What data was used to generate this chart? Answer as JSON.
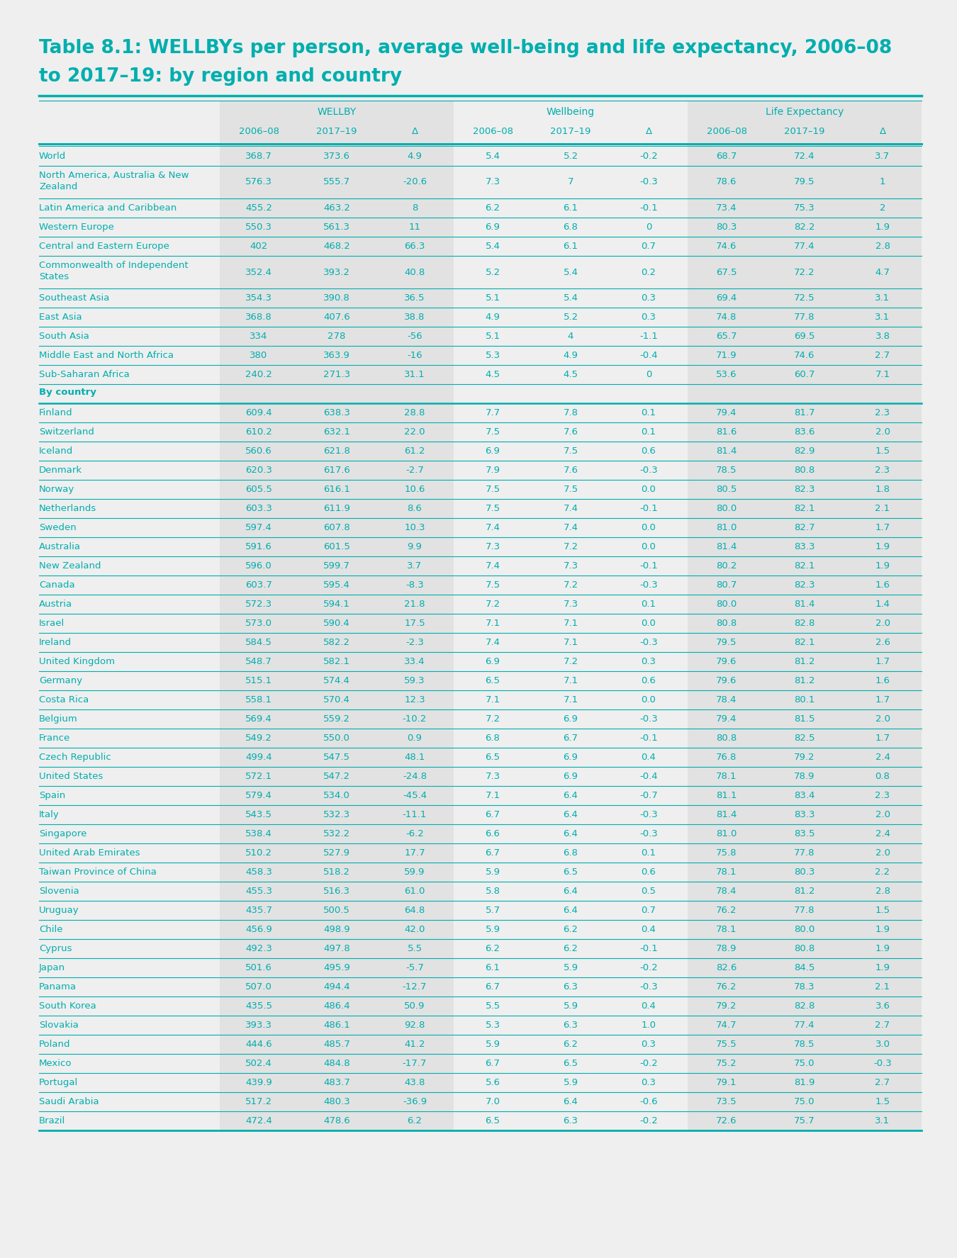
{
  "title_line1": "Table 8.1: WELLBYs per person, average well-being and life expectancy, 2006–08",
  "title_line2": "to 2017–19: by region and country",
  "teal": "#00AEAE",
  "bg_color": "#EFEFEF",
  "col_shade": "#E2E2E2",
  "header_groups": [
    "WELLBY",
    "Wellbeing",
    "Life Expectancy"
  ],
  "col_subheaders": [
    "2006–08",
    "2017–19",
    "Δ",
    "2006–08",
    "2017–19",
    "Δ",
    "2006–08",
    "2017–19",
    "Δ"
  ],
  "rows": [
    [
      "World",
      "368.7",
      "373.6",
      "4.9",
      "5.4",
      "5.2",
      "-0.2",
      "68.7",
      "72.4",
      "3.7"
    ],
    [
      "North America, Australia & New\nZealand",
      "576.3",
      "555.7",
      "-20.6",
      "7.3",
      "7",
      "-0.3",
      "78.6",
      "79.5",
      "1"
    ],
    [
      "Latin America and Caribbean",
      "455.2",
      "463.2",
      "8",
      "6.2",
      "6.1",
      "-0.1",
      "73.4",
      "75.3",
      "2"
    ],
    [
      "Western Europe",
      "550.3",
      "561.3",
      "11",
      "6.9",
      "6.8",
      "0",
      "80.3",
      "82.2",
      "1.9"
    ],
    [
      "Central and Eastern Europe",
      "402",
      "468.2",
      "66.3",
      "5.4",
      "6.1",
      "0.7",
      "74.6",
      "77.4",
      "2.8"
    ],
    [
      "Commonwealth of Independent\nStates",
      "352.4",
      "393.2",
      "40.8",
      "5.2",
      "5.4",
      "0.2",
      "67.5",
      "72.2",
      "4.7"
    ],
    [
      "Southeast Asia",
      "354.3",
      "390.8",
      "36.5",
      "5.1",
      "5.4",
      "0.3",
      "69.4",
      "72.5",
      "3.1"
    ],
    [
      "East Asia",
      "368.8",
      "407.6",
      "38.8",
      "4.9",
      "5.2",
      "0.3",
      "74.8",
      "77.8",
      "3.1"
    ],
    [
      "South Asia",
      "334",
      "278",
      "-56",
      "5.1",
      "4",
      "-1.1",
      "65.7",
      "69.5",
      "3.8"
    ],
    [
      "Middle East and North Africa",
      "380",
      "363.9",
      "-16",
      "5.3",
      "4.9",
      "-0.4",
      "71.9",
      "74.6",
      "2.7"
    ],
    [
      "Sub-Saharan Africa",
      "240.2",
      "271.3",
      "31.1",
      "4.5",
      "4.5",
      "0",
      "53.6",
      "60.7",
      "7.1"
    ],
    [
      "By country",
      null,
      null,
      null,
      null,
      null,
      null,
      null,
      null,
      null
    ],
    [
      "Finland",
      "609.4",
      "638.3",
      "28.8",
      "7.7",
      "7.8",
      "0.1",
      "79.4",
      "81.7",
      "2.3"
    ],
    [
      "Switzerland",
      "610.2",
      "632.1",
      "22.0",
      "7.5",
      "7.6",
      "0.1",
      "81.6",
      "83.6",
      "2.0"
    ],
    [
      "Iceland",
      "560.6",
      "621.8",
      "61.2",
      "6.9",
      "7.5",
      "0.6",
      "81.4",
      "82.9",
      "1.5"
    ],
    [
      "Denmark",
      "620.3",
      "617.6",
      "-2.7",
      "7.9",
      "7.6",
      "-0.3",
      "78.5",
      "80.8",
      "2.3"
    ],
    [
      "Norway",
      "605.5",
      "616.1",
      "10.6",
      "7.5",
      "7.5",
      "0.0",
      "80.5",
      "82.3",
      "1.8"
    ],
    [
      "Netherlands",
      "603.3",
      "611.9",
      "8.6",
      "7.5",
      "7.4",
      "-0.1",
      "80.0",
      "82.1",
      "2.1"
    ],
    [
      "Sweden",
      "597.4",
      "607.8",
      "10.3",
      "7.4",
      "7.4",
      "0.0",
      "81.0",
      "82.7",
      "1.7"
    ],
    [
      "Australia",
      "591.6",
      "601.5",
      "9.9",
      "7.3",
      "7.2",
      "0.0",
      "81.4",
      "83.3",
      "1.9"
    ],
    [
      "New Zealand",
      "596.0",
      "599.7",
      "3.7",
      "7.4",
      "7.3",
      "-0.1",
      "80.2",
      "82.1",
      "1.9"
    ],
    [
      "Canada",
      "603.7",
      "595.4",
      "-8.3",
      "7.5",
      "7.2",
      "-0.3",
      "80.7",
      "82.3",
      "1.6"
    ],
    [
      "Austria",
      "572.3",
      "594.1",
      "21.8",
      "7.2",
      "7.3",
      "0.1",
      "80.0",
      "81.4",
      "1.4"
    ],
    [
      "Israel",
      "573.0",
      "590.4",
      "17.5",
      "7.1",
      "7.1",
      "0.0",
      "80.8",
      "82.8",
      "2.0"
    ],
    [
      "Ireland",
      "584.5",
      "582.2",
      "-2.3",
      "7.4",
      "7.1",
      "-0.3",
      "79.5",
      "82.1",
      "2.6"
    ],
    [
      "United Kingdom",
      "548.7",
      "582.1",
      "33.4",
      "6.9",
      "7.2",
      "0.3",
      "79.6",
      "81.2",
      "1.7"
    ],
    [
      "Germany",
      "515.1",
      "574.4",
      "59.3",
      "6.5",
      "7.1",
      "0.6",
      "79.6",
      "81.2",
      "1.6"
    ],
    [
      "Costa Rica",
      "558.1",
      "570.4",
      "12.3",
      "7.1",
      "7.1",
      "0.0",
      "78.4",
      "80.1",
      "1.7"
    ],
    [
      "Belgium",
      "569.4",
      "559.2",
      "-10.2",
      "7.2",
      "6.9",
      "-0.3",
      "79.4",
      "81.5",
      "2.0"
    ],
    [
      "France",
      "549.2",
      "550.0",
      "0.9",
      "6.8",
      "6.7",
      "-0.1",
      "80.8",
      "82.5",
      "1.7"
    ],
    [
      "Czech Republic",
      "499.4",
      "547.5",
      "48.1",
      "6.5",
      "6.9",
      "0.4",
      "76.8",
      "79.2",
      "2.4"
    ],
    [
      "United States",
      "572.1",
      "547.2",
      "-24.8",
      "7.3",
      "6.9",
      "-0.4",
      "78.1",
      "78.9",
      "0.8"
    ],
    [
      "Spain",
      "579.4",
      "534.0",
      "-45.4",
      "7.1",
      "6.4",
      "-0.7",
      "81.1",
      "83.4",
      "2.3"
    ],
    [
      "Italy",
      "543.5",
      "532.3",
      "-11.1",
      "6.7",
      "6.4",
      "-0.3",
      "81.4",
      "83.3",
      "2.0"
    ],
    [
      "Singapore",
      "538.4",
      "532.2",
      "-6.2",
      "6.6",
      "6.4",
      "-0.3",
      "81.0",
      "83.5",
      "2.4"
    ],
    [
      "United Arab Emirates",
      "510.2",
      "527.9",
      "17.7",
      "6.7",
      "6.8",
      "0.1",
      "75.8",
      "77.8",
      "2.0"
    ],
    [
      "Taiwan Province of China",
      "458.3",
      "518.2",
      "59.9",
      "5.9",
      "6.5",
      "0.6",
      "78.1",
      "80.3",
      "2.2"
    ],
    [
      "Slovenia",
      "455.3",
      "516.3",
      "61.0",
      "5.8",
      "6.4",
      "0.5",
      "78.4",
      "81.2",
      "2.8"
    ],
    [
      "Uruguay",
      "435.7",
      "500.5",
      "64.8",
      "5.7",
      "6.4",
      "0.7",
      "76.2",
      "77.8",
      "1.5"
    ],
    [
      "Chile",
      "456.9",
      "498.9",
      "42.0",
      "5.9",
      "6.2",
      "0.4",
      "78.1",
      "80.0",
      "1.9"
    ],
    [
      "Cyprus",
      "492.3",
      "497.8",
      "5.5",
      "6.2",
      "6.2",
      "-0.1",
      "78.9",
      "80.8",
      "1.9"
    ],
    [
      "Japan",
      "501.6",
      "495.9",
      "-5.7",
      "6.1",
      "5.9",
      "-0.2",
      "82.6",
      "84.5",
      "1.9"
    ],
    [
      "Panama",
      "507.0",
      "494.4",
      "-12.7",
      "6.7",
      "6.3",
      "-0.3",
      "76.2",
      "78.3",
      "2.1"
    ],
    [
      "South Korea",
      "435.5",
      "486.4",
      "50.9",
      "5.5",
      "5.9",
      "0.4",
      "79.2",
      "82.8",
      "3.6"
    ],
    [
      "Slovakia",
      "393.3",
      "486.1",
      "92.8",
      "5.3",
      "6.3",
      "1.0",
      "74.7",
      "77.4",
      "2.7"
    ],
    [
      "Poland",
      "444.6",
      "485.7",
      "41.2",
      "5.9",
      "6.2",
      "0.3",
      "75.5",
      "78.5",
      "3.0"
    ],
    [
      "Mexico",
      "502.4",
      "484.8",
      "-17.7",
      "6.7",
      "6.5",
      "-0.2",
      "75.2",
      "75.0",
      "-0.3"
    ],
    [
      "Portugal",
      "439.9",
      "483.7",
      "43.8",
      "5.6",
      "5.9",
      "0.3",
      "79.1",
      "81.9",
      "2.7"
    ],
    [
      "Saudi Arabia",
      "517.2",
      "480.3",
      "-36.9",
      "7.0",
      "6.4",
      "-0.6",
      "73.5",
      "75.0",
      "1.5"
    ],
    [
      "Brazil",
      "472.4",
      "478.6",
      "6.2",
      "6.5",
      "6.3",
      "-0.2",
      "72.6",
      "75.7",
      "3.1"
    ]
  ]
}
